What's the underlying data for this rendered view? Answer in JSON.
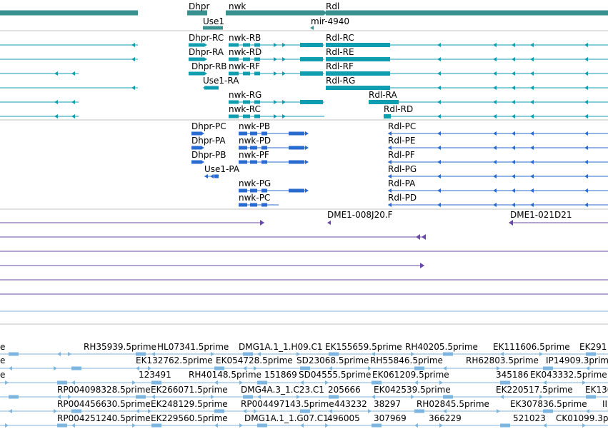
{
  "colors": {
    "gene": "#3a8f8f",
    "transcript": "#0f9db0",
    "protein": "#2a6bd0",
    "clone": "#6a4aa8",
    "est": "#7fb6e0",
    "divider": "#c0c0c0",
    "label": "#000000"
  },
  "gene_track": {
    "labels": [
      "Dhpr",
      "nwk",
      "Rdl",
      "Use1",
      "mir-4940"
    ]
  },
  "transcript_track": {
    "labels": [
      "Dhpr-RC",
      "nwk-RB",
      "Rdl-RC",
      "Dhpr-RA",
      "nwk-RD",
      "Rdl-RE",
      "Dhpr-RB",
      "nwk-RF",
      "Rdl-RF",
      "Use1-RA",
      "Rdl-RG",
      "nwk-RG",
      "Rdl-RA",
      "nwk-RC",
      "Rdl-RD"
    ]
  },
  "protein_track": {
    "labels": [
      "Dhpr-PC",
      "nwk-PB",
      "Rdl-PC",
      "Dhpr-PA",
      "nwk-PD",
      "Rdl-PE",
      "Dhpr-PB",
      "nwk-PF",
      "Rdl-PF",
      "Use1-PA",
      "Rdl-PG",
      "nwk-PG",
      "Rdl-PA",
      "nwk-PC",
      "Rdl-PD"
    ]
  },
  "clone_track": {
    "labels": [
      "DME1-008J20.F",
      "DME1-021D21"
    ]
  },
  "est_track": {
    "labels": [
      "e",
      "RH35939.5prime",
      "HL07341.5prime",
      "DMG1A.1_1.H09.C1",
      "EK155659.5prime",
      "RH40205.5prime",
      "EK111606.5prime",
      "EK291",
      "EK132762.5prime",
      "EK054728.5prime",
      "SD23068.5prime",
      "RH55846.5prime",
      "RH62803.5prime",
      "IP14909.3prime",
      "e",
      "e",
      "123491",
      "RH40148.5prime",
      "151869",
      "SD04555.5prime",
      "EK061209.5prime",
      "345186",
      "EK043332.5prime",
      "RP004098328.5prime",
      "EK266071.5prime",
      "DMG4A.3_1.C23.C1",
      "205666",
      "EK042539.5prime",
      "EK220517.5prime",
      "EK130",
      "RP004456630.5prime",
      "EK248129.5prime",
      "RP004497143.5prime",
      "443232",
      "38297",
      "RH02845.5prime",
      "EK307836.5prime",
      "II",
      "RP004251240.5prime",
      "EK229560.5prime",
      "DMG1A.1_1.G07.C1",
      "496005",
      "307969",
      "366229",
      "521023",
      "CK01099.3prime"
    ]
  }
}
